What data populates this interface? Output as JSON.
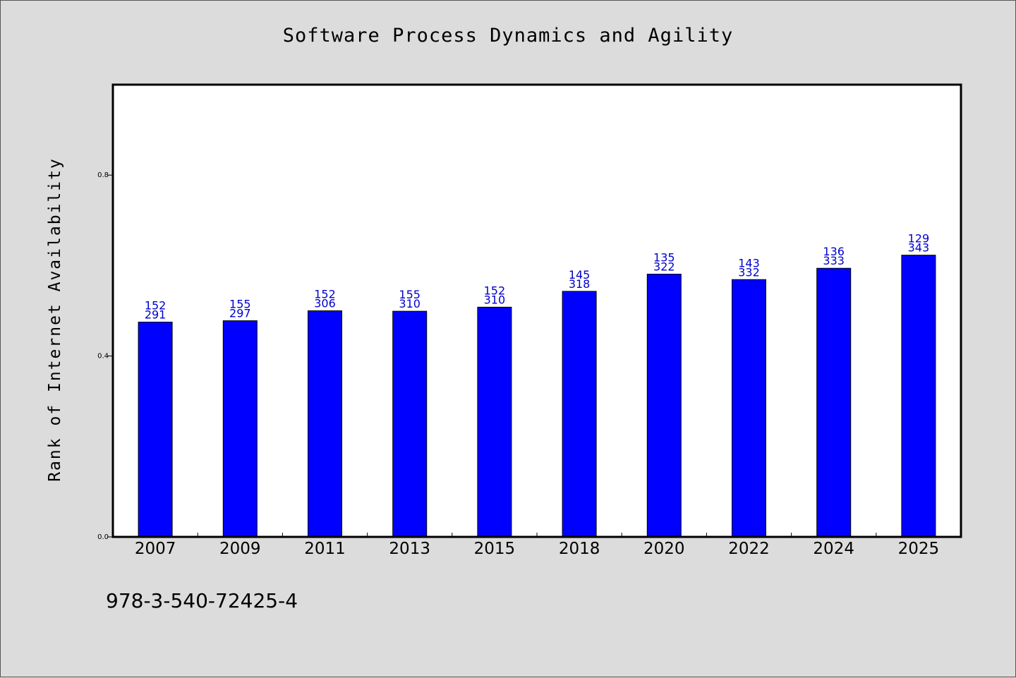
{
  "chart_data": {
    "type": "bar",
    "title": "Software Process Dynamics and Agility",
    "xlabel": "",
    "ylabel": "Rank of Internet Availability",
    "categories": [
      "2007",
      "2009",
      "2011",
      "2013",
      "2015",
      "2018",
      "2020",
      "2022",
      "2024",
      "2025"
    ],
    "series": [
      {
        "values": [
          0.475,
          0.478,
          0.5,
          0.499,
          0.508,
          0.543,
          0.581,
          0.569,
          0.594,
          0.623
        ],
        "labels_top": [
          "152",
          "155",
          "152",
          "155",
          "152",
          "145",
          "135",
          "143",
          "136",
          "129"
        ],
        "labels_bottom": [
          "291",
          "297",
          "306",
          "310",
          "310",
          "318",
          "322",
          "332",
          "333",
          "343"
        ]
      }
    ],
    "ylim": [
      0,
      1.0
    ],
    "yticks": [
      0.0,
      0.4,
      0.8
    ],
    "ytick_labels": [
      "0.0",
      "0.4",
      "0.8"
    ],
    "grid": false,
    "bar_color": "#0000ff",
    "label_color": "#0000cc"
  },
  "footer": {
    "isbn": "978-3-540-72425-4"
  }
}
